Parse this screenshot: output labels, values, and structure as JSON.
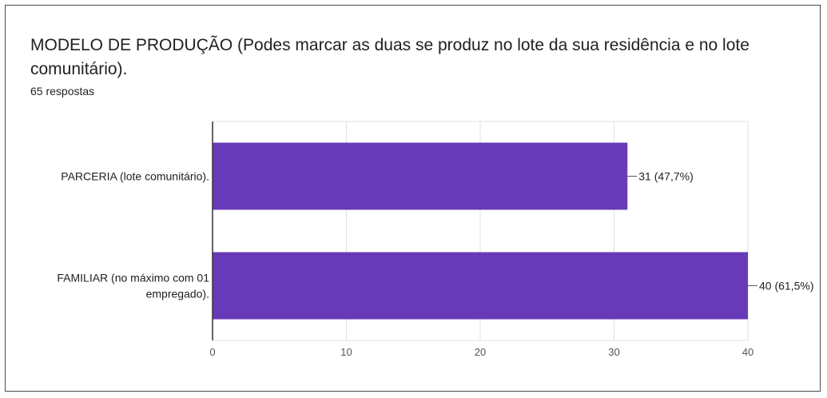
{
  "header": {
    "title": "MODELO DE PRODUÇÃO (Podes marcar as duas se produz no lote da sua residência e no lote comunitário).",
    "responses": "65 respostas"
  },
  "colors": {
    "bar": "#673ab7",
    "grid": "#e0e0e0",
    "axis": "#333333",
    "text": "#202124"
  },
  "chart_data": {
    "type": "bar",
    "orientation": "horizontal",
    "categories": [
      [
        "PARCERIA (lote comunitário)."
      ],
      [
        "FAMILIAR (no máximo com 01",
        "empregado)."
      ]
    ],
    "values": [
      31,
      40
    ],
    "data_labels": [
      "31 (47,7%)",
      "40 (61,5%)"
    ],
    "xlim": [
      0,
      40
    ],
    "xticks": [
      0,
      10,
      20,
      30,
      40
    ],
    "grid": true,
    "legend": "none"
  }
}
